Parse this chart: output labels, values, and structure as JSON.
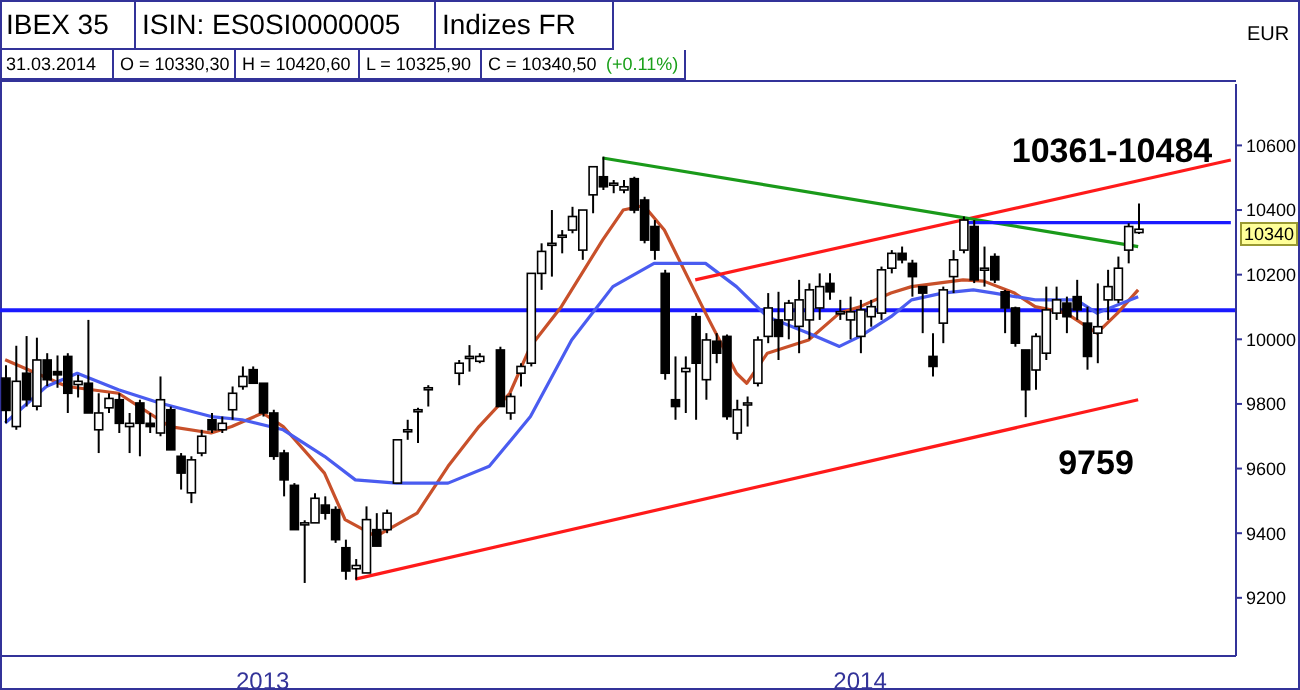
{
  "chart_data": {
    "type": "candlestick",
    "title": "IBEX 35",
    "subtitle": "ISIN: ES0SI0000005",
    "ylabel": "EUR",
    "annotations": [
      "Indizes FR",
      "31.03.2014",
      "O = 10330,30",
      "H = 10420,60",
      "L = 10325,90",
      "C = 10340,50",
      "(+0.11%)",
      "10361-10484",
      "9759",
      {
        "text": "10340",
        "y": 10340
      }
    ],
    "categories": [
      null,
      null,
      null,
      null,
      null,
      null,
      null,
      null,
      null,
      null,
      null,
      null,
      null,
      null,
      null,
      null,
      null,
      null,
      null,
      null,
      null,
      null,
      null,
      null,
      null,
      "2013",
      null,
      null,
      null,
      null,
      null,
      null,
      null,
      null,
      null,
      null,
      null,
      null,
      null,
      null,
      null,
      null,
      null,
      null,
      null,
      null,
      null,
      null,
      null,
      null,
      null,
      null,
      null,
      null,
      null,
      null,
      null,
      null,
      null,
      null,
      null,
      null,
      null,
      null,
      null,
      null,
      null,
      null,
      null,
      null,
      null,
      null,
      null,
      null,
      null,
      null,
      null,
      null,
      null,
      null,
      null,
      null,
      null,
      "2014",
      null,
      null,
      null,
      null,
      null,
      null,
      null,
      null,
      null,
      null,
      null,
      null,
      null,
      null,
      null,
      null,
      null,
      null,
      null,
      null,
      null,
      null,
      null,
      null,
      null,
      null,
      null,
      null,
      null,
      null,
      null,
      null,
      null,
      null,
      null,
      null
    ],
    "color": "#000000",
    "ohlc": [
      [
        9880,
        9920,
        9740,
        9780
      ],
      [
        9730,
        9980,
        9720,
        9870
      ],
      [
        9895,
        10010,
        9792,
        9813
      ],
      [
        9793,
        10005,
        9780,
        9936
      ],
      [
        9936,
        9957,
        9855,
        9875
      ],
      [
        9900,
        9950,
        9850,
        9890
      ],
      [
        9947,
        9957,
        9772,
        9833
      ],
      [
        9860,
        9890,
        9820,
        9870
      ],
      [
        9864,
        10060,
        9772,
        9772
      ],
      [
        9720,
        9833,
        9648,
        9772
      ],
      [
        9788,
        9833,
        9772,
        9817
      ],
      [
        9813,
        9833,
        9710,
        9740
      ],
      [
        9730,
        9772,
        9648,
        9740
      ],
      [
        9803,
        9813,
        9638,
        9740
      ],
      [
        9740,
        9772,
        9710,
        9730
      ],
      [
        9710,
        9885,
        9700,
        9813
      ],
      [
        9782,
        9792,
        9658,
        9658
      ],
      [
        9638,
        9648,
        9535,
        9586
      ],
      [
        9525,
        9638,
        9493,
        9627
      ],
      [
        9648,
        9720,
        9638,
        9700
      ],
      [
        9751,
        9772,
        9710,
        9720
      ],
      [
        9720,
        9761,
        9710,
        9740
      ],
      [
        9782,
        9854,
        9751,
        9833
      ],
      [
        9854,
        9916,
        9844,
        9885
      ],
      [
        9906,
        9916,
        9864,
        9864
      ],
      [
        9864,
        9864,
        9761,
        9772
      ],
      [
        9772,
        9782,
        9627,
        9638
      ],
      [
        9648,
        9658,
        9514,
        9565
      ],
      [
        9548,
        9555,
        9411,
        9411
      ],
      [
        9432,
        9440,
        9246,
        9432
      ],
      [
        9432,
        9524,
        9432,
        9508
      ],
      [
        9487,
        9514,
        9442,
        9462
      ],
      [
        9473,
        9483,
        9370,
        9380
      ],
      [
        9355,
        9380,
        9256,
        9283
      ],
      [
        9290,
        9320,
        9256,
        9300
      ],
      [
        9277,
        9483,
        9277,
        9442
      ],
      [
        9411,
        9462,
        9360,
        9360
      ],
      [
        9411,
        9473,
        9400,
        9462
      ],
      [
        9555,
        9689,
        9555,
        9689
      ],
      [
        9720,
        9751,
        9689,
        9720
      ],
      [
        9782,
        9788,
        9679,
        9782
      ],
      [
        9850,
        9858,
        9792,
        9850
      ],
      null,
      null,
      [
        9895,
        9936,
        9858,
        9926
      ],
      [
        9947,
        9982,
        9900,
        9947
      ],
      [
        9932,
        9957,
        9926,
        9947
      ],
      null,
      [
        9967,
        9977,
        9792,
        9792
      ],
      [
        9772,
        9833,
        9751,
        9823
      ],
      [
        9895,
        9926,
        9854,
        9916
      ],
      [
        9926,
        10204,
        9916,
        10204
      ],
      [
        10204,
        10297,
        10153,
        10272
      ],
      [
        10297,
        10400,
        10194,
        10297
      ],
      [
        10322,
        10338,
        10266,
        10322
      ],
      [
        10338,
        10410,
        10328,
        10380
      ],
      [
        10276,
        10400,
        10246,
        10400
      ],
      [
        10447,
        10534,
        10390,
        10534
      ],
      [
        10503,
        10565,
        10462,
        10472
      ],
      [
        10483,
        10493,
        10452,
        10483
      ],
      [
        10462,
        10493,
        10452,
        10472
      ],
      [
        10497,
        10503,
        10390,
        10400
      ],
      [
        10431,
        10441,
        10297,
        10307
      ],
      [
        10349,
        10369,
        10246,
        10276
      ],
      [
        10204,
        10215,
        9875,
        9895
      ],
      [
        9813,
        9947,
        9751,
        9792
      ],
      [
        9900,
        9947,
        9772,
        9910
      ],
      [
        10070,
        10081,
        9751,
        9926
      ],
      [
        9875,
        10019,
        9813,
        9998
      ],
      [
        9994,
        10019,
        9926,
        9957
      ],
      [
        10009,
        10015,
        9751,
        9761
      ],
      [
        9710,
        9813,
        9689,
        9782
      ],
      [
        9803,
        9823,
        9730,
        9803
      ],
      [
        9864,
        10009,
        9854,
        9998
      ],
      [
        10009,
        10143,
        9988,
        10097
      ],
      [
        10060,
        10147,
        9936,
        10009
      ],
      [
        10060,
        10122,
        10000,
        10112
      ],
      [
        10040,
        10184,
        9957,
        10122
      ],
      [
        10060,
        10173,
        10000,
        10153
      ],
      [
        10097,
        10204,
        10060,
        10163
      ],
      [
        10173,
        10204,
        10122,
        10147
      ],
      [
        10085,
        10122,
        10060,
        10085
      ],
      [
        10060,
        10132,
        10000,
        10085
      ],
      [
        10009,
        10122,
        9957,
        10091
      ],
      [
        10070,
        10122,
        10039,
        10101
      ],
      [
        10081,
        10225,
        10060,
        10215
      ],
      [
        10220,
        10276,
        10204,
        10266
      ],
      [
        10266,
        10287,
        10235,
        10246
      ],
      [
        10235,
        10246,
        10132,
        10194
      ],
      [
        10163,
        10163,
        10019,
        10143
      ],
      [
        9947,
        10019,
        9885,
        9916
      ],
      [
        10050,
        10163,
        9988,
        10153
      ],
      [
        10194,
        10276,
        10143,
        10246
      ],
      [
        10276,
        10380,
        10266,
        10369
      ],
      [
        10349,
        10369,
        10174,
        10184
      ],
      [
        10220,
        10287,
        10163,
        10220
      ],
      [
        10256,
        10266,
        10174,
        10184
      ],
      [
        10147,
        10153,
        10019,
        10097
      ],
      [
        10097,
        10101,
        9977,
        9988
      ],
      [
        9967,
        9967,
        9759,
        9844
      ],
      [
        9905,
        10019,
        9844,
        10009
      ],
      [
        9957,
        10163,
        9936,
        10091
      ],
      [
        10081,
        10163,
        10060,
        10122
      ],
      [
        10112,
        10132,
        10019,
        10070
      ],
      [
        10132,
        10184,
        10060,
        10091
      ],
      [
        10050,
        10101,
        9906,
        9947
      ],
      [
        10019,
        10173,
        9926,
        10039
      ],
      [
        10122,
        10215,
        10060,
        10163
      ],
      [
        10122,
        10256,
        10112,
        10220
      ],
      [
        10276,
        10359,
        10235,
        10349
      ],
      [
        10330.3,
        10420.6,
        10325.9,
        10340.5
      ],
      null,
      null,
      null,
      null,
      null,
      null,
      null,
      null,
      null
    ],
    "series": [
      {
        "type": "line",
        "color": "#c8502a",
        "values": [
          9937,
          null,
          null,
          null,
          null,
          null,
          9854,
          null,
          null,
          null,
          null,
          9833,
          null,
          null,
          null,
          null,
          9730,
          null,
          null,
          null,
          9710,
          null,
          9730,
          null,
          null,
          9772,
          null,
          9730,
          null,
          null,
          null,
          9586,
          null,
          9442,
          null,
          null,
          9390,
          null,
          null,
          null,
          9462,
          null,
          null,
          9607,
          null,
          null,
          9730,
          null,
          null,
          9833,
          null,
          9978,
          null,
          null,
          10101,
          null,
          null,
          null,
          10307,
          null,
          10400,
          null,
          10414,
          null,
          10338,
          null,
          null,
          null,
          10081,
          null,
          null,
          9895,
          9864,
          null,
          9957,
          null,
          null,
          null,
          9998,
          null,
          null,
          10081,
          null,
          10101,
          null,
          null,
          10143,
          null,
          10163,
          null,
          null,
          null,
          null,
          10184,
          null,
          10180,
          null,
          null,
          10143,
          null,
          10101,
          null,
          null,
          10081,
          null,
          null,
          10019,
          null,
          10081,
          null,
          10153,
          null,
          null,
          null,
          null,
          null,
          null,
          null,
          null,
          null
        ]
      },
      {
        "type": "line",
        "color": "#4a5cf0",
        "values": [
          9741,
          null,
          null,
          null,
          9854,
          null,
          null,
          9895,
          null,
          null,
          null,
          9844,
          null,
          null,
          null,
          9803,
          null,
          null,
          null,
          null,
          9761,
          null,
          null,
          9751,
          null,
          null,
          null,
          9720,
          null,
          null,
          null,
          9638,
          null,
          null,
          9565,
          null,
          null,
          null,
          9555,
          null,
          null,
          null,
          null,
          9555,
          null,
          null,
          null,
          9607,
          null,
          null,
          null,
          9761,
          null,
          null,
          null,
          9998,
          null,
          null,
          null,
          10163,
          null,
          null,
          null,
          10235,
          null,
          null,
          null,
          null,
          10235,
          null,
          null,
          10163,
          null,
          null,
          10070,
          null,
          null,
          null,
          10019,
          null,
          null,
          9978,
          null,
          10009,
          null,
          null,
          10070,
          null,
          10122,
          null,
          null,
          10143,
          null,
          null,
          10153,
          null,
          10143,
          null,
          null,
          null,
          10122,
          null,
          null,
          null,
          10122,
          null,
          10081,
          null,
          null,
          null,
          10132,
          null,
          null,
          null,
          null,
          null,
          null,
          null,
          null,
          null
        ]
      },
      {
        "type": "line",
        "color": "#ff1a1a",
        "values": [
          null,
          null,
          null,
          null,
          null,
          null,
          null,
          null,
          null,
          null,
          null,
          null,
          null,
          null,
          null,
          null,
          null,
          null,
          null,
          null,
          null,
          null,
          null,
          null,
          null,
          null,
          null,
          null,
          null,
          null,
          null,
          null,
          null,
          null,
          9258,
          null,
          null,
          null,
          null,
          null,
          null,
          null,
          null,
          null,
          null,
          null,
          null,
          null,
          null,
          null,
          null,
          null,
          null,
          null,
          null,
          null,
          null,
          null,
          null,
          null,
          null,
          null,
          null,
          null,
          null,
          null,
          null,
          null,
          null,
          null,
          null,
          null,
          null,
          null,
          null,
          null,
          null,
          null,
          null,
          null,
          null,
          null,
          null,
          null,
          null,
          null,
          null,
          null,
          null,
          null,
          null,
          null,
          null,
          null,
          null,
          null,
          null,
          null,
          null,
          null,
          null,
          null,
          null,
          null,
          null,
          null,
          null,
          null,
          null,
          null,
          9813,
          null,
          null,
          null,
          null,
          null,
          null,
          null,
          null,
          null
        ]
      },
      {
        "type": "line",
        "color": "#ff1a1a",
        "values": [
          null,
          null,
          null,
          null,
          null,
          null,
          null,
          null,
          null,
          null,
          null,
          null,
          null,
          null,
          null,
          null,
          null,
          null,
          null,
          null,
          null,
          null,
          null,
          null,
          null,
          null,
          null,
          null,
          null,
          null,
          null,
          null,
          null,
          null,
          null,
          null,
          null,
          null,
          null,
          null,
          null,
          null,
          null,
          null,
          null,
          null,
          null,
          null,
          null,
          null,
          null,
          null,
          null,
          null,
          null,
          null,
          null,
          null,
          null,
          null,
          null,
          null,
          null,
          null,
          null,
          null,
          null,
          10184,
          null,
          null,
          null,
          null,
          null,
          null,
          null,
          null,
          null,
          null,
          null,
          null,
          null,
          null,
          null,
          null,
          null,
          null,
          null,
          null,
          null,
          null,
          null,
          null,
          null,
          null,
          null,
          null,
          null,
          null,
          null,
          null,
          null,
          null,
          null,
          null,
          null,
          null,
          null,
          null,
          null,
          null,
          null,
          null,
          null,
          null,
          null,
          null,
          null,
          null,
          null,
          10555
        ]
      },
      {
        "type": "line",
        "color": "#1a9a1a",
        "values": [
          null,
          null,
          null,
          null,
          null,
          null,
          null,
          null,
          null,
          null,
          null,
          null,
          null,
          null,
          null,
          null,
          null,
          null,
          null,
          null,
          null,
          null,
          null,
          null,
          null,
          null,
          null,
          null,
          null,
          null,
          null,
          null,
          null,
          null,
          null,
          null,
          null,
          null,
          null,
          null,
          null,
          null,
          null,
          null,
          null,
          null,
          null,
          null,
          null,
          null,
          null,
          null,
          null,
          null,
          null,
          null,
          null,
          null,
          10561,
          null,
          null,
          null,
          null,
          null,
          null,
          null,
          null,
          null,
          null,
          null,
          null,
          null,
          null,
          null,
          null,
          null,
          null,
          null,
          null,
          null,
          null,
          null,
          null,
          null,
          null,
          null,
          null,
          null,
          null,
          null,
          null,
          null,
          null,
          null,
          null,
          null,
          null,
          null,
          null,
          null,
          null,
          null,
          null,
          null,
          null,
          null,
          null,
          null,
          null,
          null,
          10287,
          null,
          null,
          null,
          null,
          null,
          null,
          null,
          null,
          null
        ]
      },
      {
        "type": "line",
        "color": "#1a1aff",
        "values": [
          null,
          null,
          null,
          null,
          null,
          null,
          null,
          null,
          null,
          null,
          null,
          null,
          null,
          null,
          null,
          null,
          null,
          null,
          null,
          null,
          null,
          null,
          null,
          null,
          null,
          null,
          null,
          null,
          null,
          null,
          null,
          null,
          null,
          null,
          null,
          null,
          null,
          null,
          null,
          null,
          null,
          null,
          null,
          null,
          null,
          null,
          null,
          null,
          null,
          null,
          null,
          null,
          null,
          null,
          null,
          null,
          null,
          null,
          null,
          null,
          null,
          null,
          null,
          null,
          null,
          null,
          null,
          null,
          null,
          null,
          null,
          null,
          null,
          null,
          null,
          null,
          null,
          null,
          null,
          null,
          null,
          null,
          null,
          null,
          null,
          null,
          null,
          null,
          null,
          null,
          null,
          null,
          null,
          10361,
          null,
          null,
          null,
          null,
          null,
          null,
          null,
          null,
          null,
          null,
          null,
          null,
          null,
          null,
          null,
          null,
          null,
          null,
          null,
          null,
          null,
          null,
          null,
          null,
          null,
          10361
        ]
      }
    ],
    "ref_lines": [
      {
        "axis": "y",
        "value": 10090,
        "color": "#1a1aff"
      }
    ],
    "ylim": [
      9020,
      10790
    ],
    "yticks": [
      9200,
      9400,
      9600,
      9800,
      10000,
      10200,
      10400,
      10600
    ]
  }
}
